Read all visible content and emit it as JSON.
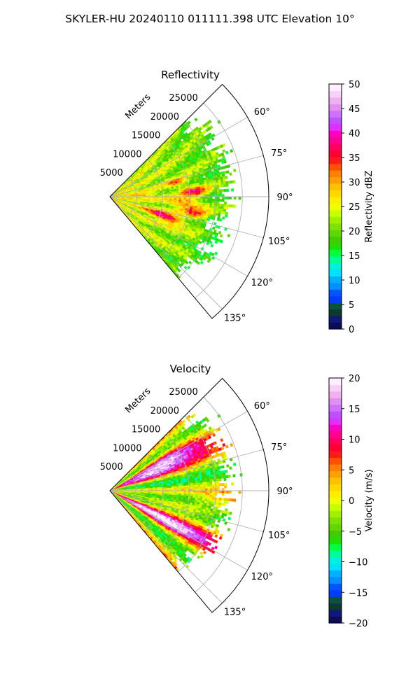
{
  "figure": {
    "title": "SKYLER-HU  20240110  011111.398 UTC Elevation 10°"
  },
  "chart_data": [
    {
      "type": "heatmap",
      "subtype": "polar-sector-ppi",
      "title": "Reflectivity",
      "range_label": "Meters",
      "range_ticks": [
        5000,
        10000,
        15000,
        20000,
        25000
      ],
      "range_tick_labels": [
        "5000",
        "10000",
        "15000",
        "20000",
        "25000"
      ],
      "azimuth_range": [
        45,
        140
      ],
      "azimuth_ticks": [
        60,
        75,
        90,
        105,
        120,
        135
      ],
      "azimuth_tick_labels": [
        "60°",
        "75°",
        "90°",
        "105°",
        "120°",
        "135°"
      ],
      "max_range": 30000,
      "data_extent_m": 22000,
      "grid": true,
      "colorbar": {
        "label": "Reflectivity dBZ",
        "vmin": 0,
        "vmax": 50,
        "ticks": [
          0,
          5,
          10,
          15,
          20,
          25,
          30,
          35,
          40,
          45,
          50
        ],
        "tick_labels": [
          "0",
          "5",
          "10",
          "15",
          "20",
          "25",
          "30",
          "35",
          "40",
          "45",
          "50"
        ],
        "colors": [
          "#0b0b5a",
          "#101878",
          "#0a3a30",
          "#0c5040",
          "#003cff",
          "#0055ff",
          "#0090ff",
          "#00b0ff",
          "#00e0ff",
          "#00f0e0",
          "#00ff90",
          "#00ff40",
          "#20e000",
          "#40cc00",
          "#60d800",
          "#80e000",
          "#a0f000",
          "#c8ff00",
          "#f0ff00",
          "#ffee00",
          "#ffd800",
          "#ffc000",
          "#ffa000",
          "#ff8000",
          "#ff5000",
          "#ff1a1a",
          "#ff0030",
          "#ff0060",
          "#ff0090",
          "#ff00c0",
          "#e030ff",
          "#c050ff",
          "#d070ff",
          "#e090f0",
          "#f0b0f0",
          "#f8d0f8",
          "#fff0ff"
        ]
      },
      "features": [
        {
          "az_center": 110,
          "az_width": 4,
          "r_center_m": 11000,
          "r_width_m": 3500,
          "value": 42
        },
        {
          "az_center": 86,
          "az_width": 3,
          "r_center_m": 16000,
          "r_width_m": 2500,
          "value": 40
        },
        {
          "az_center": 95,
          "az_width": 4,
          "r_center_m": 14500,
          "r_width_m": 3500,
          "value": 36
        },
        {
          "az_center": 101,
          "az_width": 3,
          "r_center_m": 16500,
          "r_width_m": 2500,
          "value": 35
        },
        {
          "az_center": 78,
          "az_width": 3,
          "r_center_m": 13000,
          "r_width_m": 2000,
          "value": 34
        },
        {
          "az_center": 88,
          "az_width": 3,
          "r_center_m": 6000,
          "r_width_m": 2000,
          "value": 32
        }
      ]
    },
    {
      "type": "heatmap",
      "subtype": "polar-sector-ppi",
      "title": "Velocity",
      "range_label": "Meters",
      "range_ticks": [
        5000,
        10000,
        15000,
        20000,
        25000
      ],
      "range_tick_labels": [
        "5000",
        "10000",
        "15000",
        "20000",
        "25000"
      ],
      "azimuth_range": [
        45,
        140
      ],
      "azimuth_ticks": [
        60,
        75,
        90,
        105,
        120,
        135
      ],
      "azimuth_tick_labels": [
        "60°",
        "75°",
        "90°",
        "105°",
        "120°",
        "135°"
      ],
      "max_range": 30000,
      "data_extent_m": 22000,
      "grid": true,
      "colorbar": {
        "label": "Velocity (m/s)",
        "vmin": -20,
        "vmax": 20,
        "ticks": [
          -20,
          -15,
          -10,
          -5,
          0,
          5,
          10,
          15,
          20
        ],
        "tick_labels": [
          "−20",
          "−15",
          "−10",
          "−5",
          "0",
          "5",
          "10",
          "15",
          "20"
        ],
        "colors": [
          "#0b0b5a",
          "#101878",
          "#0a3a30",
          "#0c5040",
          "#003cff",
          "#0055ff",
          "#0090ff",
          "#00b0ff",
          "#00e0ff",
          "#00f0e0",
          "#00ff90",
          "#00ff40",
          "#20e000",
          "#40cc00",
          "#60d800",
          "#80e000",
          "#a0f000",
          "#c8ff00",
          "#f0ff00",
          "#ffee00",
          "#ffd800",
          "#ffc000",
          "#ffa000",
          "#ff8000",
          "#ff5000",
          "#ff1a1a",
          "#ff0030",
          "#ff0060",
          "#ff0090",
          "#ff00c0",
          "#e030ff",
          "#c050ff",
          "#d070ff",
          "#e090f0",
          "#f0b0f0",
          "#f8d0f8",
          "#fff0ff"
        ]
      },
      "features": [
        {
          "az_center": 70,
          "az_width": 9,
          "r_center_m": 9000,
          "r_width_m": 8000,
          "value": 10
        },
        {
          "az_center": 60,
          "az_width": 5,
          "r_center_m": 12000,
          "r_width_m": 9000,
          "value": 14
        },
        {
          "az_center": 84,
          "az_width": 4,
          "r_center_m": 9000,
          "r_width_m": 9000,
          "value": -5
        },
        {
          "az_center": 95,
          "az_width": 5,
          "r_center_m": 11000,
          "r_width_m": 10000,
          "value": -11
        },
        {
          "az_center": 103,
          "az_width": 4,
          "r_center_m": 12000,
          "r_width_m": 8000,
          "value": 7
        },
        {
          "az_center": 118,
          "az_width": 6,
          "r_center_m": 11000,
          "r_width_m": 10000,
          "value": 14
        }
      ]
    }
  ]
}
